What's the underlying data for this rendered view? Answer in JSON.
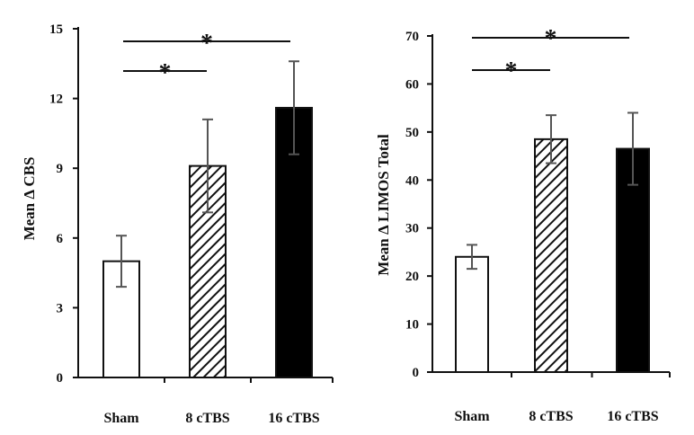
{
  "chart_data": [
    {
      "type": "bar",
      "ylabel": "Mean Δ CBS",
      "ylim": [
        0,
        15
      ],
      "yticks": [
        "0",
        "3",
        "6",
        "9",
        "12",
        "15"
      ],
      "categories": [
        "Sham",
        "8 cTBS",
        "16 cTBS"
      ],
      "values": [
        5.0,
        9.1,
        11.6
      ],
      "errors": [
        1.1,
        2.0,
        2.0
      ],
      "fills": [
        "white",
        "hatched",
        "black"
      ],
      "significance": [
        {
          "from": 0,
          "to": 1,
          "label": "*"
        },
        {
          "from": 0,
          "to": 2,
          "label": "*"
        }
      ],
      "grid": false
    },
    {
      "type": "bar",
      "ylabel": "Mean Δ LIMOS Total",
      "ylim": [
        0,
        70
      ],
      "yticks": [
        "0",
        "10",
        "20",
        "30",
        "40",
        "50",
        "60",
        "70"
      ],
      "categories": [
        "Sham",
        "8 cTBS",
        "16 cTBS"
      ],
      "values": [
        24,
        48.5,
        46.5
      ],
      "errors": [
        2.5,
        5,
        7.5
      ],
      "fills": [
        "white",
        "hatched",
        "black"
      ],
      "significance": [
        {
          "from": 0,
          "to": 1,
          "label": "*"
        },
        {
          "from": 0,
          "to": 2,
          "label": "*"
        }
      ],
      "grid": false
    }
  ]
}
